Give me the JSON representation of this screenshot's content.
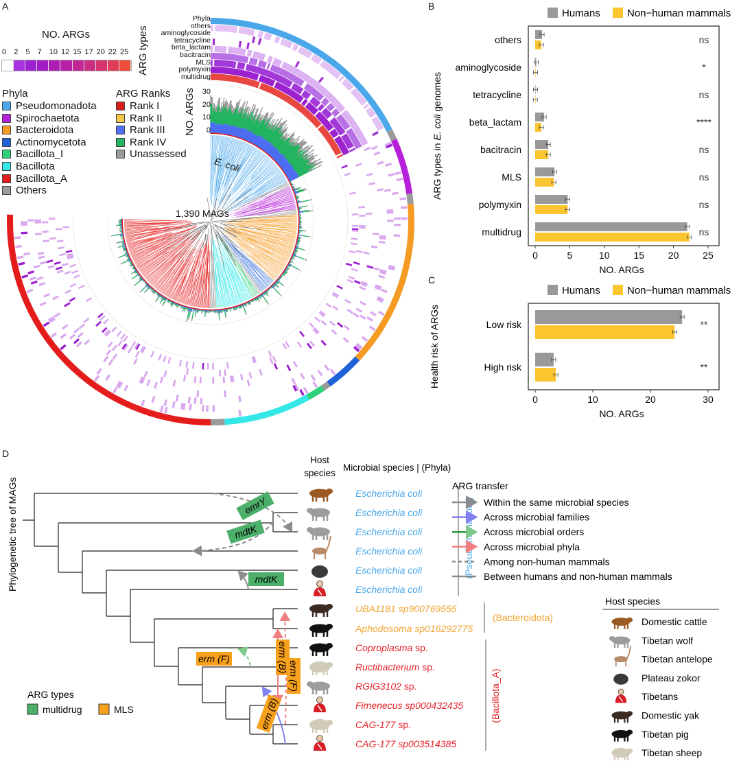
{
  "panels": {
    "a": "A",
    "b": "B",
    "c": "C",
    "d": "D"
  },
  "panel_a": {
    "scale_title": "NO. ARGs",
    "scale_ticks": [
      "0",
      "2",
      "5",
      "7",
      "10",
      "12",
      "15",
      "17",
      "20",
      "22",
      "25"
    ],
    "scale_colors": [
      "#ffffff",
      "#a734e0",
      "#9b20cf",
      "#a11cc2",
      "#ac1db3",
      "#b620a4",
      "#c02694",
      "#cb2d83",
      "#d5346f",
      "#e03d5a",
      "#ee4d3c"
    ],
    "phyla_title": "Phyla",
    "phyla": [
      {
        "label": "Pseudomonadota",
        "color": "#4aa8ea"
      },
      {
        "label": "Spirochaetota",
        "color": "#b620d8"
      },
      {
        "label": "Bacteroidota",
        "color": "#f59a22"
      },
      {
        "label": "Actinomycetota",
        "color": "#1f62d8"
      },
      {
        "label": "Bacillota_I",
        "color": "#2fd17a"
      },
      {
        "label": "Bacillota",
        "color": "#35e8e8"
      },
      {
        "label": "Bacillota_A",
        "color": "#e41c1c"
      },
      {
        "label": "Others",
        "color": "#9a9a9a"
      }
    ],
    "ranks_title": "ARG Ranks",
    "ranks": [
      {
        "label": "Rank I",
        "color": "#d81c1c"
      },
      {
        "label": "Rank II",
        "color": "#f6c84a"
      },
      {
        "label": "Rank III",
        "color": "#4d6df2"
      },
      {
        "label": "Rank IV",
        "color": "#22b45f"
      },
      {
        "label": "Unassessed",
        "color": "#9a9a9a"
      }
    ],
    "arg_types_title": "ARG types",
    "ring_labels": [
      "Phyla",
      "others",
      "aminoglycoside",
      "tetracycline",
      "beta_lactam",
      "bacitracin",
      "MLS",
      "polymyxin",
      "multidrug"
    ],
    "bar_axis_title": "NO. ARGs",
    "bar_ticks": [
      "30",
      "20",
      "10",
      "0"
    ],
    "ecoli_label": "E. coli",
    "center_label": "1,390 MAGs"
  },
  "chart_data": [
    {
      "type": "bar",
      "orientation": "horizontal",
      "categories": [
        "others",
        "aminoglycoside",
        "tetracycline",
        "beta_lactam",
        "bacitracin",
        "MLS",
        "polymyxin",
        "multidrug"
      ],
      "series": [
        {
          "name": "Humans",
          "color": "#999999",
          "values": [
            1.0,
            0.15,
            0.05,
            1.3,
            1.9,
            2.8,
            4.7,
            22.0
          ]
        },
        {
          "name": "Non−human mammals",
          "color": "#fbc530",
          "values": [
            0.9,
            0.05,
            0.02,
            0.9,
            1.9,
            2.7,
            4.7,
            22.3
          ]
        }
      ],
      "significance": [
        "ns",
        "*",
        "ns",
        "****",
        "ns",
        "ns",
        "ns",
        "ns"
      ],
      "ylabel_pre": "ARG types in ",
      "ylabel_italic": "E. coli",
      "ylabel_post": " genomes",
      "xlabel": "NO. ARGs",
      "xlim": [
        0,
        25
      ],
      "xticks": [
        "0",
        "5",
        "10",
        "15",
        "20",
        "25"
      ],
      "legend": "top"
    },
    {
      "type": "bar",
      "orientation": "horizontal",
      "categories": [
        "Low risk",
        "High risk"
      ],
      "series": [
        {
          "name": "Humans",
          "color": "#999999",
          "values": [
            25.5,
            3.2
          ]
        },
        {
          "name": "Non−human mammals",
          "color": "#fbc530",
          "values": [
            24.2,
            3.6
          ]
        }
      ],
      "significance": [
        "**",
        "**"
      ],
      "ylabel": "Health risk of ARGs",
      "xlabel": "NO. ARGs",
      "xlim": [
        0,
        30
      ],
      "xticks": [
        "0",
        "10",
        "20",
        "30"
      ],
      "legend": "top"
    }
  ],
  "panel_d": {
    "tree_title": "Phylogenetic tree of MAGs",
    "host_header": [
      "Host",
      "species"
    ],
    "microbe_header": "Microbial species | (Phyla)",
    "leaves": [
      {
        "host": "cattle",
        "species": "Escherichia coli",
        "rest": "",
        "color": "#4aa8ea"
      },
      {
        "host": "wolf",
        "species": "Escherichia coli",
        "rest": "",
        "color": "#4aa8ea"
      },
      {
        "host": "wolf",
        "species": "Escherichia coli",
        "rest": "",
        "color": "#4aa8ea"
      },
      {
        "host": "antelope",
        "species": "Escherichia coli",
        "rest": "",
        "color": "#4aa8ea"
      },
      {
        "host": "zokor",
        "species": "Escherichia coli",
        "rest": "",
        "color": "#4aa8ea"
      },
      {
        "host": "human",
        "species": "Escherichia coli",
        "rest": "",
        "color": "#4aa8ea"
      },
      {
        "host": "yak",
        "species": "UBA1181 sp900769555",
        "rest": "",
        "color": "#f2a531"
      },
      {
        "host": "pig",
        "species": "Aphodosoma sp016292775",
        "rest": "",
        "color": "#f2a531"
      },
      {
        "host": "pig",
        "species": "Coproplasma",
        "rest": " sp.",
        "color": "#e4222a"
      },
      {
        "host": "sheep",
        "species": "Ructibacterium",
        "rest": " sp.",
        "color": "#e4222a"
      },
      {
        "host": "wolf",
        "species": "RGIG3102",
        "rest": " sp.",
        "color": "#e4222a"
      },
      {
        "host": "human",
        "species": "Fimenecus sp000432435",
        "rest": "",
        "color": "#e4222a"
      },
      {
        "host": "sheep",
        "species": "CAG-177",
        "rest": " sp.",
        "color": "#e4222a"
      },
      {
        "host": "human",
        "species": "CAG-177 sp003514385",
        "rest": "",
        "color": "#e4222a"
      }
    ],
    "phyla_groups": [
      "(Pseudomonadota)",
      "(Bacteroidota)",
      "(Bacillota_A)"
    ],
    "gene_labels": [
      "emrY",
      "mdtK",
      "mdtK",
      "erm (F)",
      "erm (B)",
      "erm (F)",
      "erm (B)"
    ],
    "arg_types_title": "ARG types",
    "arg_types": [
      {
        "label": "multidrug",
        "color": "#4caf6a"
      },
      {
        "label": "MLS",
        "color": "#f7a01c"
      }
    ],
    "transfer_title": "ARG transfer",
    "transfer": [
      {
        "label": "Within the same microbial species",
        "color": "#8c8c8c",
        "style": "arrow"
      },
      {
        "label": "Across microbial families",
        "color": "#8080f0",
        "style": "arrow"
      },
      {
        "label": "Across microbial orders",
        "color": "#2a9a3a",
        "style": "arrow"
      },
      {
        "label": "Across microbial phyla",
        "color": "#f08080",
        "style": "arrow"
      },
      {
        "label": "Among non-human mammals",
        "color": "#888888",
        "style": "dashed"
      },
      {
        "label": "Between humans and non-human mammals",
        "color": "#888888",
        "style": "solid"
      }
    ],
    "host_legend_title": "Host species",
    "hosts": [
      {
        "key": "cattle",
        "label": "Domestic cattle"
      },
      {
        "key": "wolf",
        "label": "Tibetan wolf"
      },
      {
        "key": "antelope",
        "label": "Tibetan antelope"
      },
      {
        "key": "zokor",
        "label": "Plateau zokor"
      },
      {
        "key": "human",
        "label": "Tibetans"
      },
      {
        "key": "yak",
        "label": "Domestic yak"
      },
      {
        "key": "pig",
        "label": "Tibetan pig"
      },
      {
        "key": "sheep",
        "label": "Tibetan sheep"
      }
    ]
  }
}
